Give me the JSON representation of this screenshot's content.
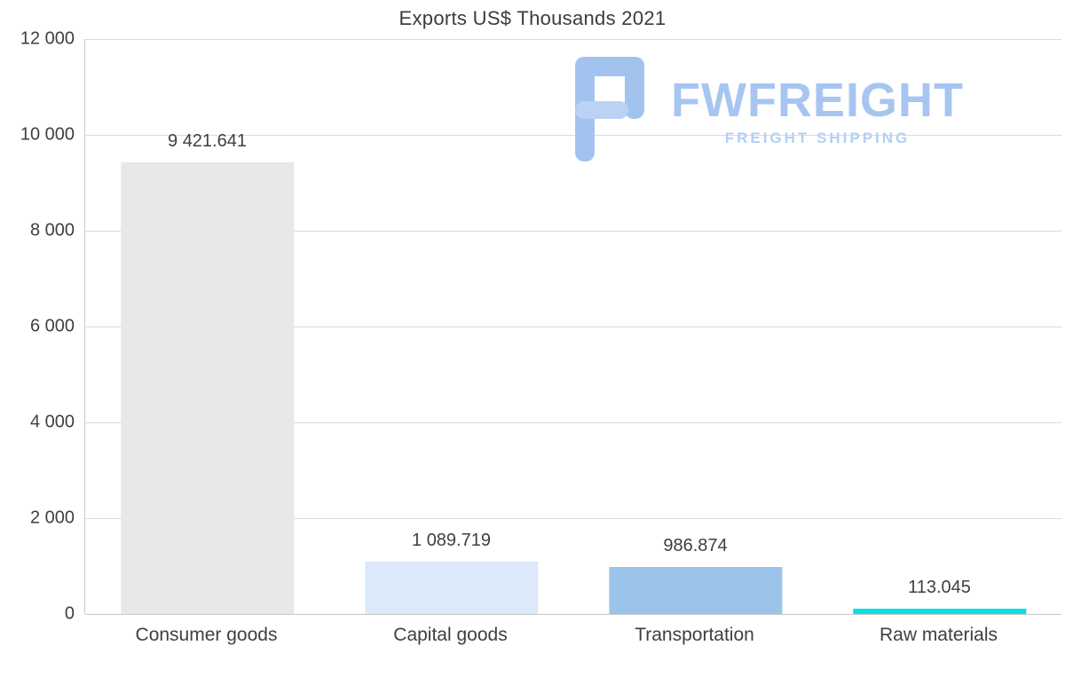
{
  "chart_data": {
    "type": "bar",
    "title": "Exports US$ Thousands 2021",
    "categories": [
      "Consumer goods",
      "Capital goods",
      "Transportation",
      "Raw materials"
    ],
    "values": [
      9421.641,
      1089.719,
      986.874,
      113.045
    ],
    "value_labels": [
      "9 421.641",
      "1 089.719",
      "986.874",
      "113.045"
    ],
    "bar_colors": [
      "#e8e8e8",
      "#dbe9fb",
      "#9cc3e9",
      "#0bdfe0"
    ],
    "ylim": [
      0,
      12000
    ],
    "yticks": [
      0,
      2000,
      4000,
      6000,
      8000,
      10000,
      12000
    ],
    "ytick_labels": [
      "0",
      "2 000",
      "4 000",
      "6 000",
      "8 000",
      "10 000",
      "12 000"
    ],
    "xlabel": "",
    "ylabel": "",
    "grid": true,
    "legend_position": "none"
  },
  "watermark": {
    "brand": "FWFREIGHT",
    "tagline": "FREIGHT SHIPPING",
    "logo_color": "#a3c3ef"
  }
}
